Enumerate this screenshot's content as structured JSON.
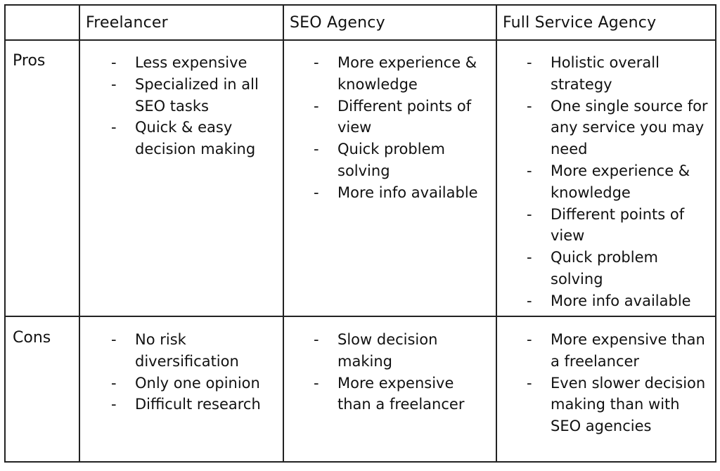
{
  "headers": [
    "",
    "Freelancer",
    "SEO Agency",
    "Full Service Agency"
  ],
  "rows": [
    {
      "label": "Pros",
      "cells": [
        [
          "Less expensive",
          "Specialized in all SEO tasks",
          "Quick & easy decision making"
        ],
        [
          "More experience & knowledge",
          "Different points of view",
          "Quick problem solving",
          "More info available"
        ],
        [
          "Holistic overall strategy",
          "One single source for any service you may need",
          "More experience & knowledge",
          "Different points of view",
          "Quick problem solving",
          "More info available"
        ]
      ]
    },
    {
      "label": "Cons",
      "cells": [
        [
          "No risk diversification",
          "Only one opinion",
          "Difficult research"
        ],
        [
          "Slow decision making",
          "More expensive than a freelancer"
        ],
        [
          "More expensive than a freelancer",
          "Even slower decision making than with SEO agencies"
        ]
      ]
    }
  ]
}
